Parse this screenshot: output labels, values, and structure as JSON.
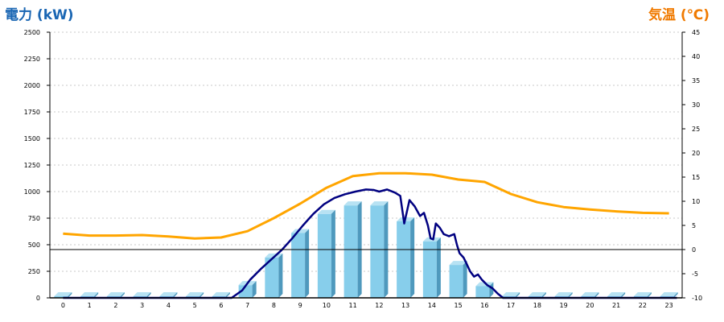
{
  "chart_data": {
    "type": "bar",
    "colors": {
      "left_title": "#1a66b3",
      "right_title": "#f07a00",
      "bar_front": "#87ceeb",
      "bar_side": "#4f99bd",
      "bar_top": "#b7e2f3",
      "power_line": "#000080",
      "temp_line": "#ffa500",
      "grid": "#c8c8c8"
    },
    "left_axis": {
      "label": "電力 (kW)",
      "ylim": [
        0,
        2500
      ],
      "ticks": [
        0,
        250,
        500,
        750,
        1000,
        1250,
        1500,
        1750,
        2000,
        2250,
        2500
      ]
    },
    "right_axis": {
      "label": "気温 (℃)",
      "ylim": [
        -10,
        45
      ],
      "ticks": [
        -10,
        -5,
        0,
        5,
        10,
        15,
        20,
        25,
        30,
        35,
        40,
        45
      ]
    },
    "categories": [
      "0",
      "1",
      "2",
      "3",
      "4",
      "5",
      "6",
      "7",
      "8",
      "9",
      "10",
      "11",
      "12",
      "13",
      "14",
      "15",
      "16",
      "17",
      "18",
      "19",
      "20",
      "21",
      "22",
      "23"
    ],
    "series": [
      {
        "kind": "bar",
        "axis": "left",
        "values": [
          0,
          0,
          0,
          0,
          0,
          0,
          0,
          120,
          380,
          610,
          790,
          870,
          870,
          720,
          530,
          310,
          110,
          0,
          0,
          0,
          0,
          0,
          0,
          0
        ]
      },
      {
        "kind": "line",
        "axis": "left",
        "points": [
          [
            0,
            0
          ],
          [
            6.4,
            0
          ],
          [
            6.8,
            70
          ],
          [
            7.1,
            170
          ],
          [
            7.5,
            270
          ],
          [
            7.9,
            360
          ],
          [
            8.3,
            450
          ],
          [
            8.7,
            560
          ],
          [
            9.1,
            680
          ],
          [
            9.5,
            790
          ],
          [
            9.9,
            880
          ],
          [
            10.3,
            940
          ],
          [
            10.7,
            975
          ],
          [
            11.1,
            1000
          ],
          [
            11.5,
            1020
          ],
          [
            11.8,
            1015
          ],
          [
            12.0,
            1000
          ],
          [
            12.3,
            1020
          ],
          [
            12.6,
            990
          ],
          [
            12.8,
            960
          ],
          [
            12.95,
            700
          ],
          [
            13.15,
            920
          ],
          [
            13.35,
            860
          ],
          [
            13.55,
            770
          ],
          [
            13.7,
            800
          ],
          [
            13.85,
            680
          ],
          [
            13.95,
            560
          ],
          [
            14.05,
            550
          ],
          [
            14.15,
            700
          ],
          [
            14.3,
            660
          ],
          [
            14.45,
            600
          ],
          [
            14.55,
            590
          ],
          [
            14.65,
            580
          ],
          [
            14.85,
            600
          ],
          [
            14.95,
            500
          ],
          [
            15.05,
            420
          ],
          [
            15.2,
            380
          ],
          [
            15.3,
            330
          ],
          [
            15.45,
            250
          ],
          [
            15.6,
            200
          ],
          [
            15.75,
            220
          ],
          [
            15.9,
            170
          ],
          [
            16.1,
            120
          ],
          [
            16.3,
            90
          ],
          [
            16.5,
            40
          ],
          [
            16.7,
            0
          ],
          [
            23.3,
            0
          ]
        ]
      },
      {
        "kind": "line",
        "axis": "right",
        "points": [
          [
            0,
            3.3
          ],
          [
            1,
            2.9
          ],
          [
            2,
            2.9
          ],
          [
            3,
            3.0
          ],
          [
            4,
            2.7
          ],
          [
            5,
            2.3
          ],
          [
            6,
            2.5
          ],
          [
            7,
            3.8
          ],
          [
            8,
            6.5
          ],
          [
            9,
            9.5
          ],
          [
            10,
            12.8
          ],
          [
            11,
            15.2
          ],
          [
            12,
            15.8
          ],
          [
            13,
            15.8
          ],
          [
            14,
            15.5
          ],
          [
            15,
            14.5
          ],
          [
            16,
            14.0
          ],
          [
            17,
            11.5
          ],
          [
            18,
            9.8
          ],
          [
            19,
            8.8
          ],
          [
            20,
            8.3
          ],
          [
            21,
            7.9
          ],
          [
            22,
            7.6
          ],
          [
            23,
            7.5
          ]
        ]
      }
    ]
  }
}
